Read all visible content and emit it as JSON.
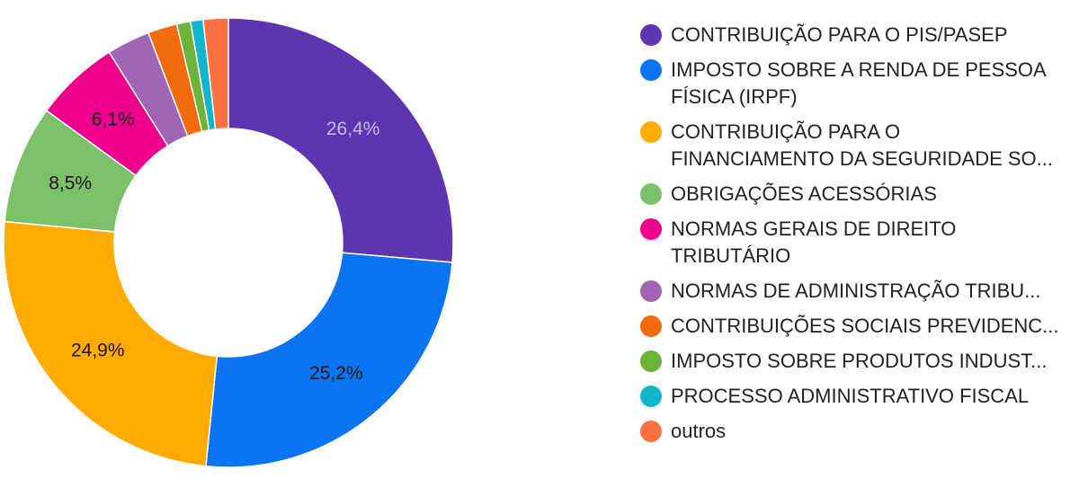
{
  "chart_data": {
    "type": "pie",
    "variant": "donut",
    "legend_position": "right",
    "slices": [
      {
        "label": "CONTRIBUIÇÃO PARA O PIS/PASEP",
        "value": 26.4,
        "value_label": "26,4%",
        "color": "#5e35b1",
        "label_color": "#c5b8e8"
      },
      {
        "label": "IMPOSTO SOBRE A RENDA DE PESSOA FÍSICA (IRPF)",
        "value": 25.2,
        "value_label": "25,2%",
        "color": "#0b74f0",
        "label_color": "#1a1a1a"
      },
      {
        "label": "CONTRIBUIÇÃO PARA O FINANCIAMENTO DA SEGURIDADE SO...",
        "value": 24.9,
        "value_label": "24,9%",
        "color": "#ffab00",
        "label_color": "#1a1a1a"
      },
      {
        "label": "OBRIGAÇÕES ACESSÓRIAS",
        "value": 8.5,
        "value_label": "8,5%",
        "color": "#7cc06a",
        "label_color": "#1a1a1a"
      },
      {
        "label": "NORMAS GERAIS DE DIREITO TRIBUTÁRIO",
        "value": 6.1,
        "value_label": "6,1%",
        "color": "#ec008c",
        "label_color": "#1a1a1a"
      },
      {
        "label": "NORMAS DE ADMINISTRAÇÃO TRIBU...",
        "value": 3.1,
        "value_label": "",
        "color": "#a066b4",
        "label_color": "#1a1a1a"
      },
      {
        "label": "CONTRIBUIÇÕES SOCIAIS PREVIDENC...",
        "value": 2.1,
        "value_label": "",
        "color": "#f26b0f",
        "label_color": "#1a1a1a"
      },
      {
        "label": "IMPOSTO SOBRE PRODUTOS INDUST...",
        "value": 1.0,
        "value_label": "",
        "color": "#6fb23a",
        "label_color": "#1a1a1a"
      },
      {
        "label": "PROCESSO ADMINISTRATIVO FISCAL",
        "value": 0.9,
        "value_label": "",
        "color": "#12b5cb",
        "label_color": "#1a1a1a"
      },
      {
        "label": "outros",
        "value": 1.8,
        "value_label": "",
        "color": "#ff7043",
        "label_color": "#1a1a1a"
      }
    ]
  }
}
